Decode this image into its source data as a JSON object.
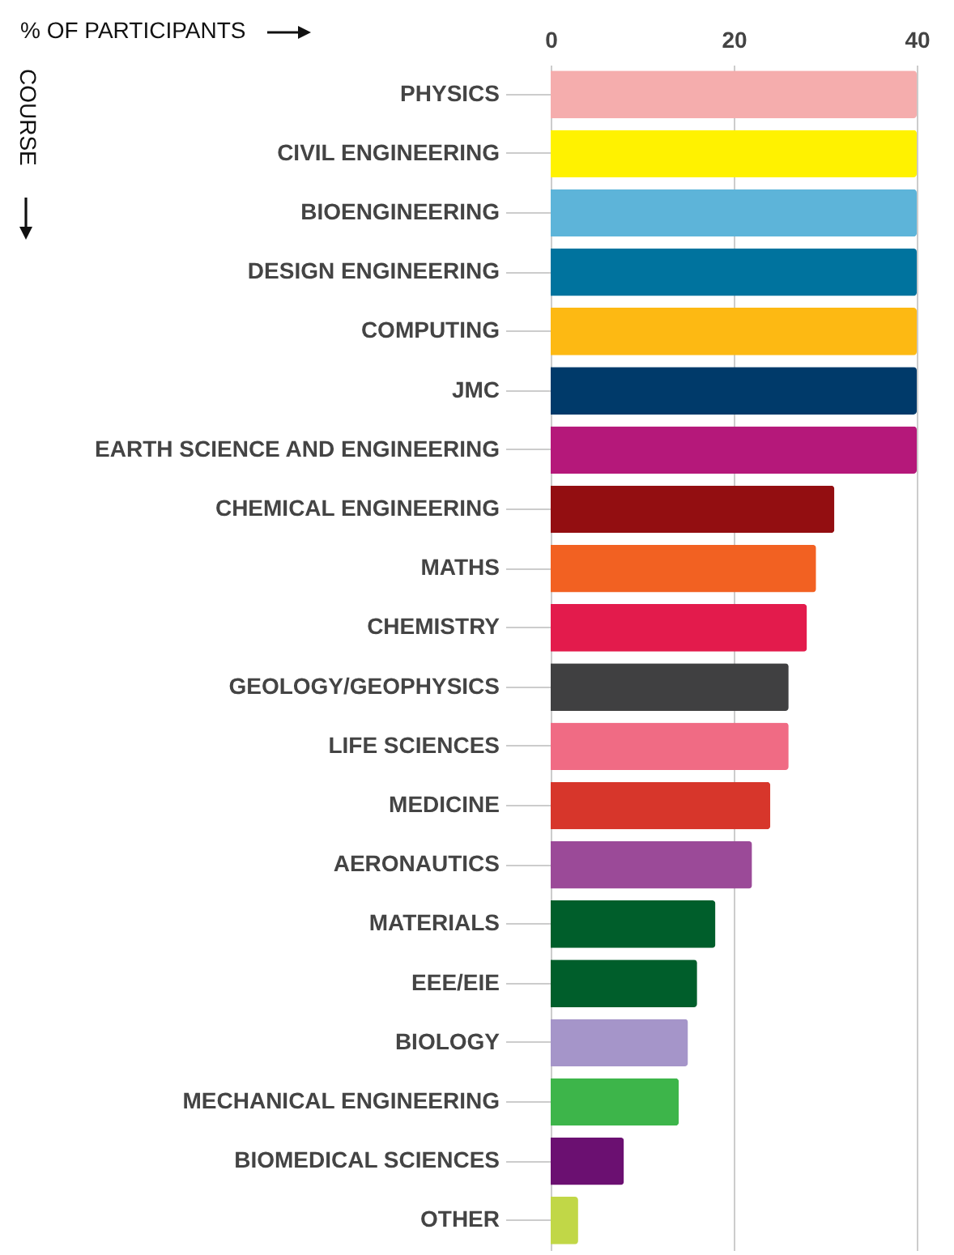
{
  "chart_data": {
    "type": "bar",
    "orientation": "horizontal",
    "xlabel": "% OF PARTICIPANTS",
    "ylabel": "COURSE",
    "categories": [
      "PHYSICS",
      "CIVIL ENGINEERING",
      "BIOENGINEERING",
      "DESIGN ENGINEERING",
      "COMPUTING",
      "JMC",
      "EARTH SCIENCE AND ENGINEERING",
      "CHEMICAL ENGINEERING",
      "MATHS",
      "CHEMISTRY",
      "GEOLOGY/GEOPHYSICS",
      "LIFE SCIENCES",
      "MEDICINE",
      "AERONAUTICS",
      "MATERIALS",
      "EEE/EIE",
      "BIOLOGY",
      "MECHANICAL ENGINEERING",
      "BIOMEDICAL SCIENCES",
      "OTHER"
    ],
    "values": [
      40,
      40,
      40,
      40,
      40,
      40,
      40,
      31,
      29,
      28,
      26,
      26,
      24,
      22,
      18,
      16,
      15,
      14,
      8,
      3
    ],
    "colors": [
      "#f5adad",
      "#fff200",
      "#5db4d9",
      "#00739e",
      "#fdb913",
      "#003a6a",
      "#b5187a",
      "#930e11",
      "#f26122",
      "#e31b4c",
      "#404041",
      "#f06b84",
      "#d7362b",
      "#9b4a98",
      "#005e2b",
      "#005e2b",
      "#a595c9",
      "#3db54a",
      "#6b1071",
      "#c1d747"
    ],
    "xlim": [
      0,
      40
    ],
    "xticks": [
      0,
      20,
      40
    ],
    "grid": "x"
  }
}
